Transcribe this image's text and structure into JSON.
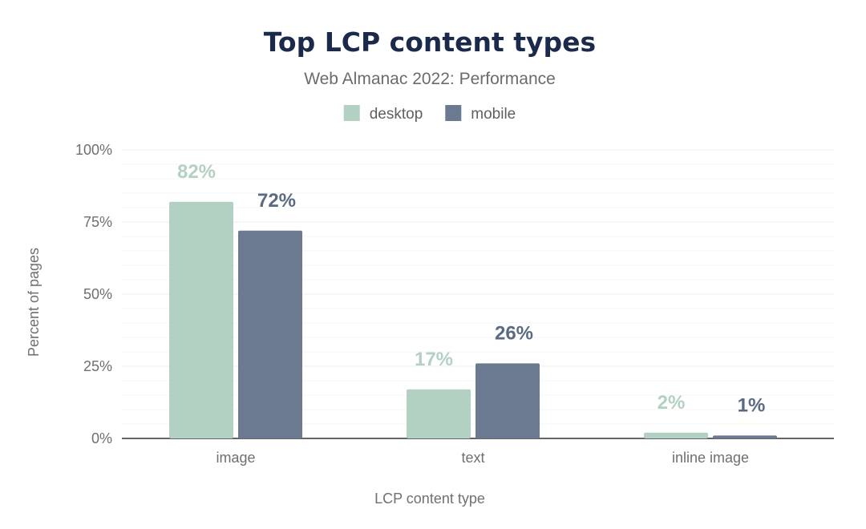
{
  "chart_data": {
    "type": "bar",
    "title": "Top LCP content types",
    "subtitle": "Web Almanac 2022: Performance",
    "xlabel": "LCP content type",
    "ylabel": "Percent of pages",
    "categories": [
      "image",
      "text",
      "inline image"
    ],
    "series": [
      {
        "name": "desktop",
        "color": "#b3d1c3",
        "values": [
          82,
          17,
          2
        ],
        "labels": [
          "82%",
          "17%",
          "2%"
        ]
      },
      {
        "name": "mobile",
        "color": "#6b7a91",
        "values": [
          72,
          26,
          1
        ],
        "labels": [
          "72%",
          "26%",
          "1%"
        ]
      }
    ],
    "ylim": [
      0,
      100
    ],
    "yticks": [
      0,
      25,
      50,
      75,
      100
    ],
    "ytick_labels": [
      "0%",
      "25%",
      "50%",
      "75%",
      "100%"
    ],
    "grid": true,
    "legend_position": "top-center"
  }
}
